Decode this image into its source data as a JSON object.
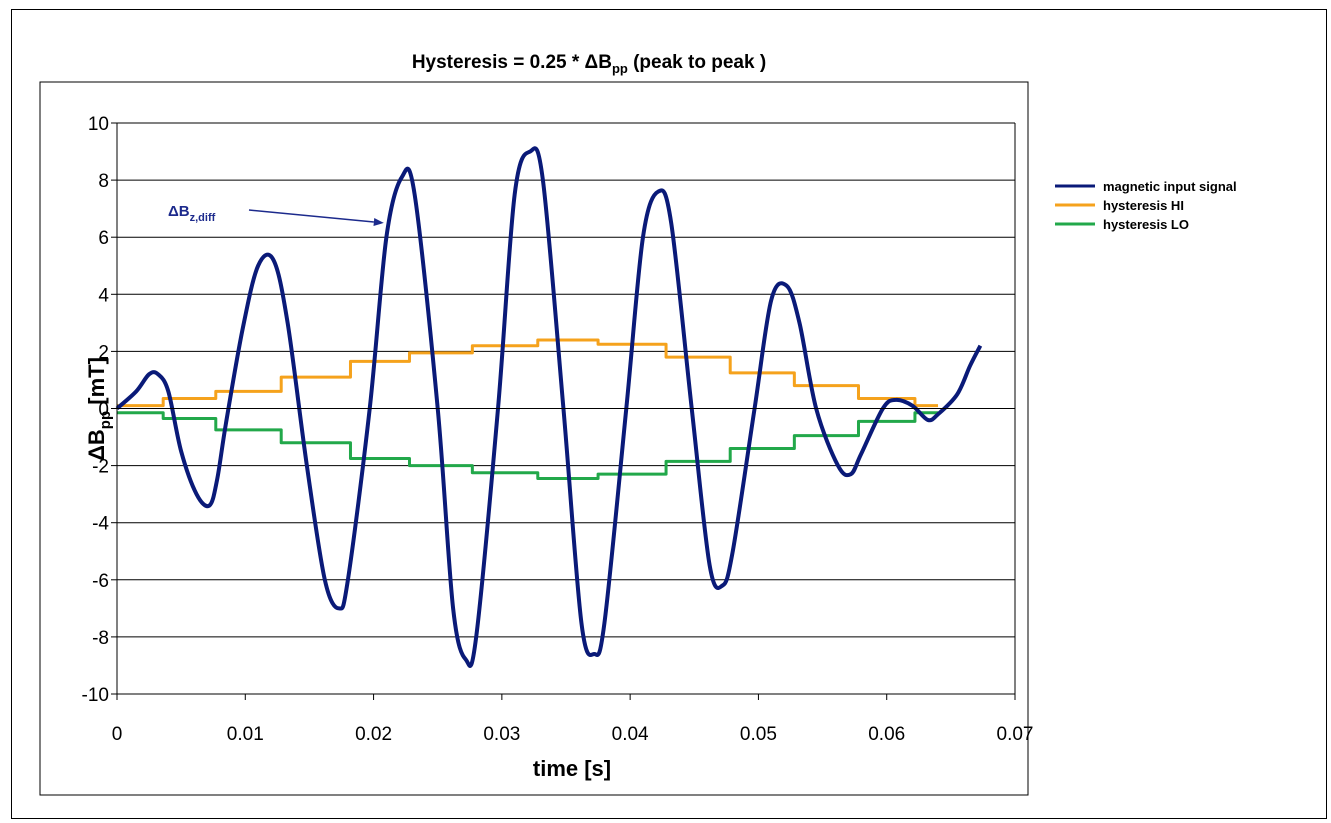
{
  "chart_data": {
    "type": "line",
    "title": {
      "pre": "Hysteresis  = 0.25 * ",
      "delta": "Δ",
      "var": "B",
      "sub": "pp",
      "post": " (peak to peak )"
    },
    "xlabel": "time [s]",
    "ylabel": {
      "delta": "Δ",
      "var": "B",
      "sub": "pp",
      "unit": " [mT]"
    },
    "xlim": [
      0,
      0.07
    ],
    "ylim": [
      -10,
      10
    ],
    "xticks": [
      0,
      0.01,
      0.02,
      0.03,
      0.04,
      0.05,
      0.06,
      0.07
    ],
    "xtick_labels": [
      "0",
      "0.01",
      "0.02",
      "0.03",
      "0.04",
      "0.05",
      "0.06",
      "0.07"
    ],
    "yticks": [
      -10,
      -8,
      -6,
      -4,
      -2,
      0,
      2,
      4,
      6,
      8,
      10
    ],
    "ytick_labels": [
      "-10",
      "-8",
      "-6",
      "-4",
      "-2",
      "0",
      "2",
      "4",
      "6",
      "8",
      "10"
    ],
    "grid": {
      "horizontal": true,
      "vertical": false
    },
    "legend_position": "right",
    "annotation": {
      "delta": "Δ",
      "var": "B",
      "sub": "z,diff",
      "target": [
        0.0208,
        6.5
      ]
    },
    "series": [
      {
        "name": "magnetic input signal",
        "color": "#0a1a78",
        "kind": "line",
        "x": [
          0,
          0.0015,
          0.0025,
          0.0032,
          0.004,
          0.005,
          0.0062,
          0.0072,
          0.0078,
          0.0085,
          0.0098,
          0.011,
          0.0122,
          0.0133,
          0.0148,
          0.0162,
          0.0173,
          0.018,
          0.0197,
          0.021,
          0.0222,
          0.0232,
          0.025,
          0.0262,
          0.0272,
          0.028,
          0.0297,
          0.031,
          0.0322,
          0.0332,
          0.0348,
          0.0362,
          0.0372,
          0.038,
          0.0397,
          0.041,
          0.0422,
          0.0432,
          0.0448,
          0.0462,
          0.0472,
          0.048,
          0.0497,
          0.051,
          0.0522,
          0.0532,
          0.0545,
          0.0562,
          0.0572,
          0.058,
          0.0597,
          0.0607,
          0.062,
          0.0632,
          0.064,
          0.0655,
          0.0665,
          0.0673
        ],
        "values": [
          0,
          0.6,
          1.2,
          1.2,
          0.6,
          -1.5,
          -3.0,
          -3.4,
          -2.5,
          -0.5,
          2.8,
          5.0,
          5.2,
          3.0,
          -2.0,
          -6.0,
          -7.0,
          -6.0,
          0.0,
          6.0,
          8.1,
          7.5,
          0.0,
          -7.0,
          -8.8,
          -8.0,
          0.0,
          7.5,
          9.0,
          8.0,
          0.0,
          -7.5,
          -8.6,
          -7.5,
          0.0,
          6.0,
          7.6,
          6.5,
          0.0,
          -5.5,
          -6.2,
          -5.0,
          0.0,
          3.8,
          4.3,
          3.0,
          0.0,
          -2.0,
          -2.3,
          -1.6,
          0.0,
          0.3,
          0.1,
          -0.4,
          -0.2,
          0.5,
          1.5,
          2.2
        ]
      },
      {
        "name": "hysteresis HI",
        "color": "#f5a21c",
        "kind": "step",
        "x": [
          0,
          0.0036,
          0.0077,
          0.0128,
          0.0182,
          0.0228,
          0.0277,
          0.0328,
          0.0375,
          0.0428,
          0.0478,
          0.0528,
          0.0578,
          0.0622,
          0.064
        ],
        "values": [
          0.1,
          0.35,
          0.6,
          1.1,
          1.65,
          1.95,
          2.2,
          2.4,
          2.25,
          1.8,
          1.25,
          0.8,
          0.35,
          0.1,
          0.1
        ]
      },
      {
        "name": "hysteresis LO",
        "color": "#22a84a",
        "kind": "step",
        "x": [
          0,
          0.0036,
          0.0077,
          0.0128,
          0.0182,
          0.0228,
          0.0277,
          0.0328,
          0.0375,
          0.0428,
          0.0478,
          0.0528,
          0.0578,
          0.0622,
          0.064
        ],
        "values": [
          -0.15,
          -0.35,
          -0.75,
          -1.2,
          -1.75,
          -2.0,
          -2.25,
          -2.45,
          -2.3,
          -1.85,
          -1.4,
          -0.95,
          -0.45,
          -0.15,
          -0.15
        ]
      }
    ]
  }
}
